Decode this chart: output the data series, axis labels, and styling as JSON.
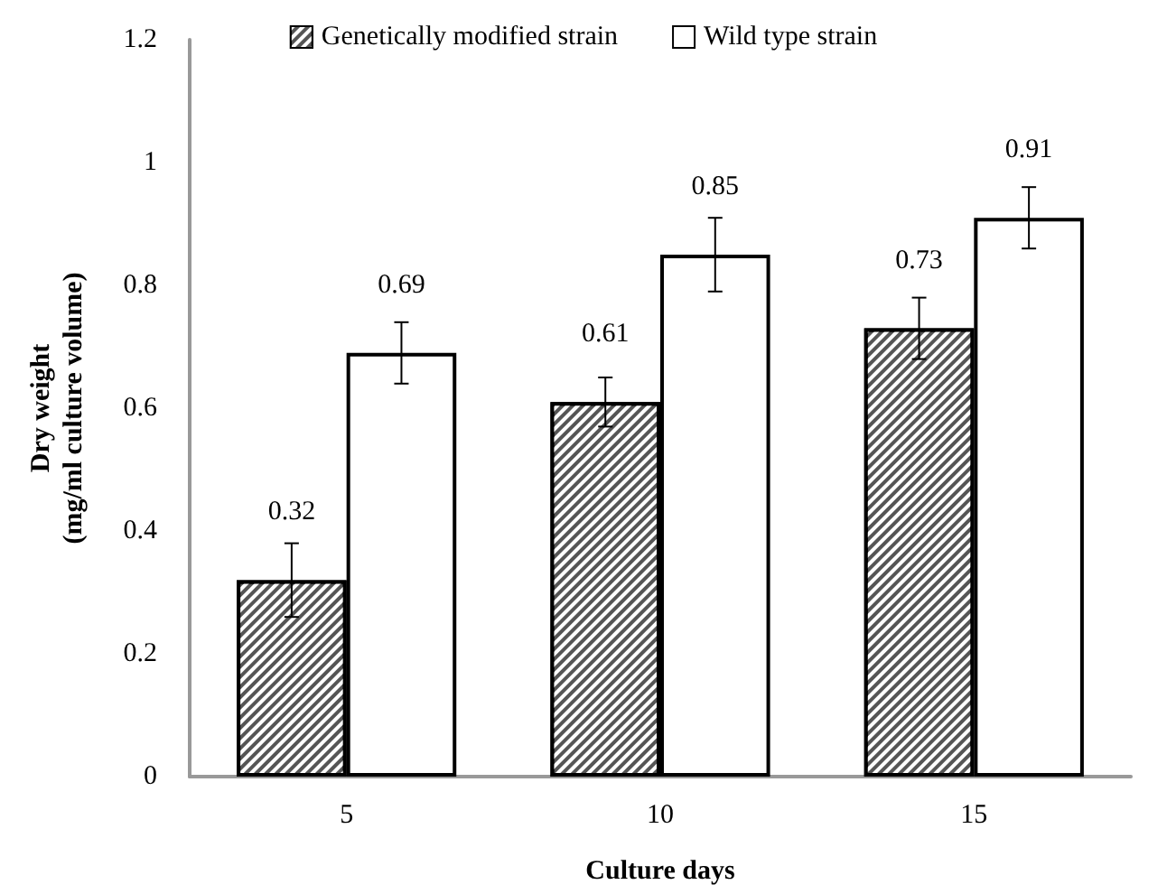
{
  "chart_data": {
    "type": "bar",
    "xlabel": "Culture days",
    "ylabel": "Dry weight\n(mg/ml culture volume)",
    "categories": [
      "5",
      "10",
      "15"
    ],
    "series": [
      {
        "name": "Genetically modified strain",
        "color": "#555555",
        "values": [
          0.32,
          0.61,
          0.73
        ],
        "errors": [
          0.06,
          0.04,
          0.05
        ]
      },
      {
        "name": "Wild type strain",
        "color": "#ffffff",
        "values": [
          0.69,
          0.85,
          0.91
        ],
        "errors": [
          0.05,
          0.06,
          0.05
        ]
      }
    ],
    "ylim": [
      0,
      1.2
    ],
    "yticks": [
      0,
      0.2,
      0.4,
      0.6,
      0.8,
      1,
      1.2
    ],
    "grid": false,
    "legend": "top",
    "data_labels": true
  }
}
